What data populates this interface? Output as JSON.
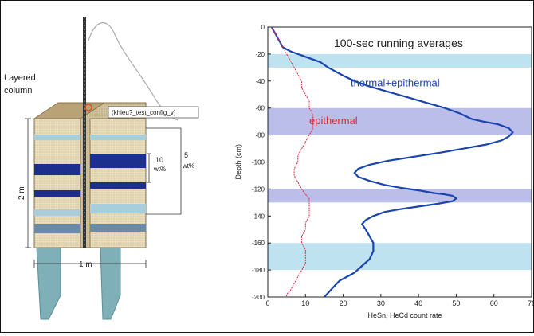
{
  "diagram": {
    "label_line1": "Layered",
    "label_line2": "column",
    "config_tag": "(khieu?_test_config_v)",
    "dim_height": "2 m",
    "dim_width": "1 m",
    "pct_a_value": "10",
    "pct_a_unit": "wt%",
    "pct_b_value": "5",
    "pct_b_unit": "wt%"
  },
  "chart_data": {
    "type": "line",
    "title": "100-sec running averages",
    "xlabel": "HeSn, HeCd count rate",
    "ylabel": "Depth (cm)",
    "xlim": [
      0,
      70
    ],
    "ylim": [
      0,
      200
    ],
    "y_inverted": true,
    "x_ticks": [
      0,
      10,
      20,
      30,
      40,
      50,
      60,
      70
    ],
    "x_tick_labels": [
      "0",
      "10",
      "20",
      "30",
      "40",
      "50",
      "60",
      "70"
    ],
    "y_ticks": [
      0,
      20,
      40,
      60,
      80,
      100,
      120,
      140,
      160,
      180,
      200
    ],
    "y_tick_labels": [
      "0",
      "-20",
      "-40",
      "-60",
      "-80",
      "-100",
      "-120",
      "-140",
      "-160",
      "-180",
      "-200"
    ],
    "grid": false,
    "shaded_bands": [
      {
        "from": 20,
        "to": 30,
        "color": "#a8d8ea"
      },
      {
        "from": 60,
        "to": 80,
        "color": "#a3a8e0"
      },
      {
        "from": 120,
        "to": 130,
        "color": "#a3a8e0"
      },
      {
        "from": 160,
        "to": 180,
        "color": "#a8d8ea"
      }
    ],
    "series": [
      {
        "name": "thermal+epithermal",
        "color": "#1a44b0",
        "x": [
          1,
          2,
          3,
          4,
          6,
          8,
          10,
          12,
          14,
          15,
          16,
          18,
          20,
          23,
          27,
          32,
          37,
          42,
          47,
          51,
          54,
          57,
          61,
          64,
          65,
          64,
          62,
          58,
          52,
          46,
          39,
          32,
          27,
          24,
          23,
          24,
          27,
          31,
          35,
          40,
          44,
          47,
          49,
          50,
          49,
          45,
          40,
          35,
          31,
          28,
          26,
          25,
          26,
          27,
          28,
          28,
          27,
          25,
          23,
          21,
          19,
          18,
          17,
          16,
          15
        ],
        "y": [
          0,
          5,
          10,
          15,
          18,
          20,
          22,
          24,
          26,
          28,
          30,
          33,
          36,
          40,
          44,
          48,
          52,
          56,
          60,
          64,
          68,
          70,
          72,
          75,
          78,
          81,
          84,
          87,
          90,
          93,
          96,
          99,
          102,
          105,
          108,
          111,
          114,
          117,
          119,
          121,
          123,
          124,
          125,
          127,
          129,
          131,
          133,
          135,
          137,
          140,
          143,
          146,
          150,
          155,
          160,
          166,
          172,
          177,
          182,
          185,
          188,
          191,
          194,
          197,
          200
        ]
      },
      {
        "name": "epithermal",
        "color": "#e0283c",
        "x": [
          1,
          2,
          3,
          4,
          5,
          6,
          7,
          8,
          9,
          9,
          10,
          11,
          11,
          12,
          12,
          12,
          11,
          10,
          9,
          8,
          8,
          7,
          7,
          8,
          9,
          10,
          11,
          11,
          11,
          11,
          10,
          10,
          9,
          9,
          10,
          10,
          10,
          9,
          8,
          7,
          6,
          5,
          5
        ],
        "y": [
          0,
          5,
          10,
          15,
          20,
          25,
          30,
          35,
          40,
          45,
          50,
          55,
          60,
          65,
          70,
          75,
          80,
          85,
          90,
          95,
          100,
          105,
          110,
          115,
          120,
          124,
          127,
          130,
          135,
          140,
          145,
          150,
          155,
          160,
          165,
          170,
          175,
          180,
          185,
          190,
          195,
          198,
          200
        ]
      }
    ],
    "annotations": [
      {
        "text": "thermal+epithermal",
        "x": 22,
        "y": 44,
        "color": "#1a44b0"
      },
      {
        "text": "epithermal",
        "x": 11,
        "y": 72,
        "color": "#e0283c"
      }
    ]
  }
}
